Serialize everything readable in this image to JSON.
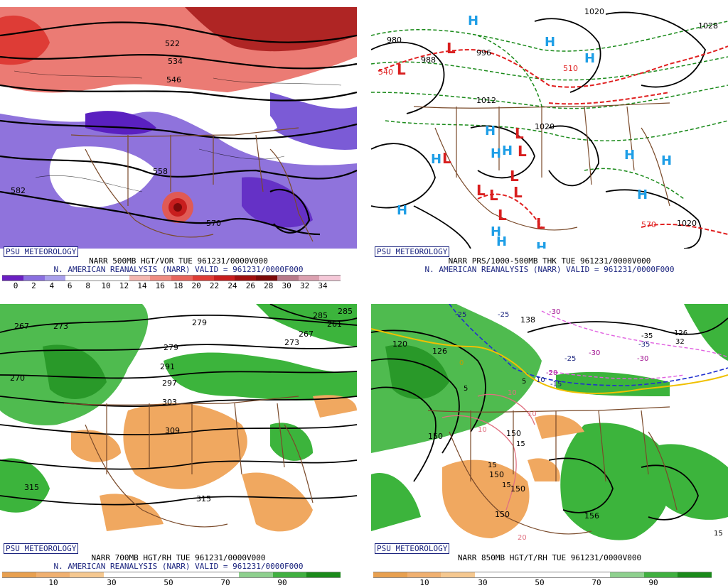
{
  "source_label": "PSU METEOROLOGY",
  "panels": [
    {
      "id": "p1",
      "title_line1": "NARR 500MB HGT/VOR TUE 961231/0000V000",
      "title_line2": "N. AMERICAN REANALYSIS (NARR) VALID = 961231/0000F000",
      "colorbar": [
        "#6a1fc2",
        "#8a6fe0",
        "#a9a0ec",
        "#ffffff",
        "#ffffff",
        "#ffffff",
        "#f5b7b0",
        "#ef8c82",
        "#e8645c",
        "#de3c36",
        "#c81e1e",
        "#a01010",
        "#7c0a0a",
        "#b87a8a",
        "#dba0b0",
        "#f5c8d8"
      ],
      "ticks": [
        "0",
        "2",
        "4",
        "6",
        "8",
        "10",
        "12",
        "14",
        "16",
        "18",
        "20",
        "22",
        "24",
        "26",
        "28",
        "30",
        "32",
        "34"
      ],
      "labels": [
        "522",
        "534",
        "546",
        "582",
        "570",
        "558"
      ],
      "lows": [],
      "highs": []
    },
    {
      "id": "p2",
      "title_line1": "NARR PRS/1000-500MB THK TUE 961231/0000V000",
      "title_line2": "N. AMERICAN REANALYSIS (NARR) VALID = 961231/0000F000",
      "colorbar": [],
      "ticks": [],
      "labels": [
        "980",
        "988",
        "996",
        "1012",
        "1020",
        "1020",
        "540",
        "510",
        "570",
        "1020",
        "1028"
      ],
      "lows": [
        "L",
        "L",
        "L",
        "L",
        "L",
        "L",
        "L",
        "L",
        "L",
        "L",
        "L"
      ],
      "highs": [
        "H",
        "H",
        "H",
        "H",
        "H",
        "H",
        "H",
        "H",
        "H",
        "H",
        "H",
        "H",
        "H",
        "H"
      ]
    },
    {
      "id": "p3",
      "title_line1": "NARR 700MB HGT/RH TUE 961231/0000V000",
      "title_line2": "N. AMERICAN REANALYSIS (NARR) VALID = 961231/0000F000",
      "colorbar": [
        "#e8a050",
        "#f0b070",
        "#f5c890",
        "#ffffff",
        "#ffffff",
        "#ffffff",
        "#ffffff",
        "#8ed08e",
        "#40b040",
        "#1a8a1a"
      ],
      "ticks": [
        "10",
        "30",
        "50",
        "70",
        "90"
      ],
      "labels": [
        "267",
        "273",
        "279",
        "285",
        "261",
        "267",
        "273",
        "279",
        "285",
        "291",
        "297",
        "303",
        "309",
        "315",
        "315",
        "270"
      ],
      "lows": [],
      "highs": []
    },
    {
      "id": "p4",
      "title_line1": "NARR 850MB HGT/T/RH TUE 961231/0000V000",
      "title_line2": "",
      "colorbar": [
        "#e8a050",
        "#f0b070",
        "#f5c890",
        "#ffffff",
        "#ffffff",
        "#ffffff",
        "#ffffff",
        "#8ed08e",
        "#40b040",
        "#1a8a1a"
      ],
      "ticks": [
        "10",
        "30",
        "50",
        "70",
        "90"
      ],
      "labels": [
        "120",
        "126",
        "138",
        "150",
        "150",
        "150",
        "150",
        "156",
        "150",
        "-25",
        "-25",
        "-30",
        "-25",
        "-30",
        "-35",
        "-30",
        "-20",
        "-15",
        "10",
        "5",
        "5",
        "0",
        "10",
        "10",
        "10",
        "15",
        "15",
        "15",
        "20",
        "15",
        "32",
        "126",
        "-35"
      ],
      "lows": [],
      "highs": []
    }
  ],
  "colors": {
    "vort_purple": "#7b5bd6",
    "vort_dark_purple": "#5a20c0",
    "vort_red": "#e05a55",
    "vort_dark_red": "#a01515",
    "rh_green": "#3cb43c",
    "rh_dark_green": "#1a8a1a",
    "rh_orange": "#f0a860",
    "border_brown": "#7a4a2a",
    "contour_black": "#000000",
    "low_red": "#d81e1e",
    "high_cyan": "#1e9ee6",
    "isobar_green": "#1a8a1a",
    "thickness_red": "#e02020",
    "label_navy": "#1a237e"
  }
}
